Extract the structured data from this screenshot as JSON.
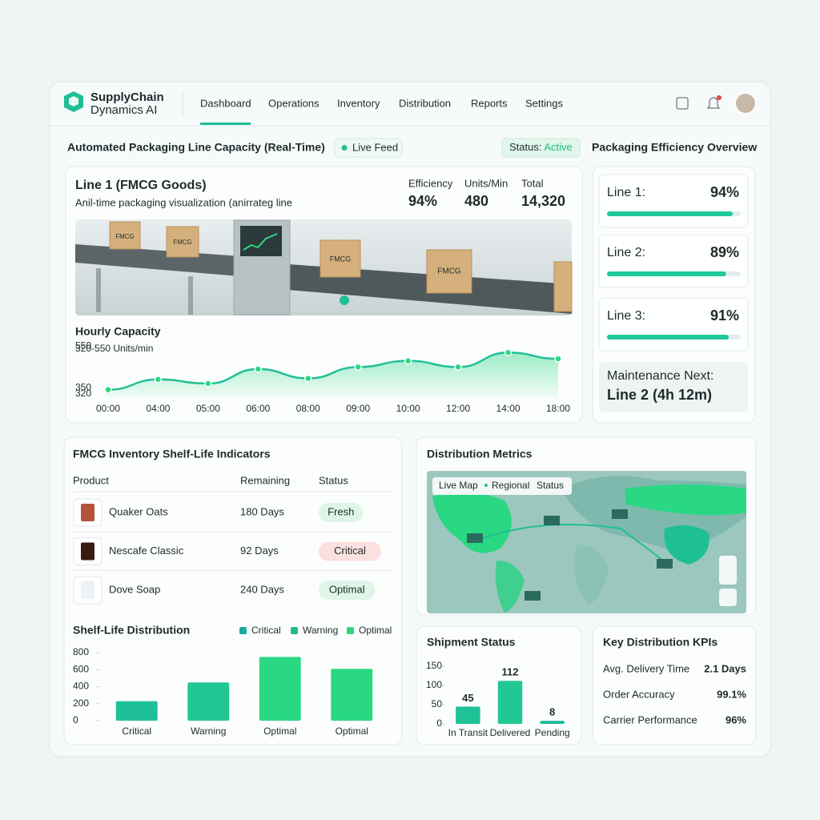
{
  "brand": {
    "name": "SupplyChain",
    "sub": "Dynamics AI"
  },
  "nav": [
    "Dashboard",
    "Operations",
    "Inventory",
    "Distribution",
    "Reports",
    "Settings"
  ],
  "packaging": {
    "title": "Automated Packaging Line Capacity (Real-Time)",
    "live": "Live Feed",
    "status_label": "Status:",
    "status": "Active",
    "line_name": "Line 1 (FMCG Goods)",
    "description": "Anil-time packaging visualization (anirrateg line",
    "stats": [
      {
        "label": "Efficiency",
        "value": "94%"
      },
      {
        "label": "Units/Min",
        "value": "480"
      },
      {
        "label": "Total",
        "value": "14,320"
      }
    ],
    "box_label": "FMCG"
  },
  "efficiency": {
    "title": "Packaging Efficiency Overview",
    "lines": [
      {
        "name": "Line 1:",
        "value": 94,
        "label": "94%"
      },
      {
        "name": "Line 2:",
        "value": 89,
        "label": "89%"
      },
      {
        "name": "Line 3:",
        "value": 91,
        "label": "91%"
      }
    ],
    "maintenance_label": "Maintenance Next:",
    "maintenance_value": "Line 2 (4h 12m)"
  },
  "inventory": {
    "title": "FMCG Inventory Shelf-Life Indicators",
    "headers": [
      "Product",
      "Remaining",
      "Status"
    ],
    "rows": [
      [
        "Quaker Oats",
        "180 Days",
        "Fresh"
      ],
      [
        "Nescafe Classic",
        "92 Days",
        "Critical"
      ],
      [
        "Dove Soap",
        "240 Days",
        "Optimal"
      ]
    ]
  },
  "distribution": {
    "title": "Distribution Metrics",
    "map_labels": [
      "Live Map",
      "Regional",
      "Status"
    ]
  },
  "kpis": {
    "title": "Key Distribution KPIs",
    "rows": [
      [
        "Avg. Delivery Time",
        "2.1 Days"
      ],
      [
        "Order Accuracy",
        "99.1%"
      ],
      [
        "Carrier Performance",
        "96%"
      ]
    ]
  },
  "chart_data": [
    {
      "type": "line",
      "title": "Hourly Capacity",
      "subtitle": "320-550 Units/min",
      "categories": [
        "00:00",
        "04:00",
        "05:00",
        "06:00",
        "08:00",
        "09:00",
        "10:00",
        "12:00",
        "14:00",
        "18:00"
      ],
      "values": [
        340,
        390,
        370,
        440,
        395,
        450,
        480,
        450,
        520,
        490
      ],
      "color": "#1fbf96",
      "ylim": [
        300,
        560
      ],
      "yticks": [
        320,
        350,
        550
      ]
    },
    {
      "type": "bar",
      "title": "Shelf-Life Distribution",
      "categories": [
        "Critical",
        "Warning",
        "Optimal",
        "Optimal"
      ],
      "values": [
        230,
        450,
        750,
        610
      ],
      "colors": [
        "#1fbf9a",
        "#22c693",
        "#2ad884",
        "#2ad884"
      ],
      "legend": [
        {
          "name": "Critical",
          "color": "#1aa99c"
        },
        {
          "name": "Warning",
          "color": "#20b98e"
        },
        {
          "name": "Optimal",
          "color": "#2fd67d"
        }
      ],
      "ylim": [
        0,
        800
      ],
      "yticks": [
        0,
        200,
        400,
        600,
        800
      ]
    },
    {
      "type": "bar",
      "title": "Shipment Status",
      "categories": [
        "In Transit",
        "Delivered",
        "Pending"
      ],
      "values": [
        45,
        112,
        8
      ],
      "colors": [
        "#1fc297",
        "#22c893",
        "#1fb9a0"
      ],
      "show_values": true,
      "ylim": [
        0,
        150
      ],
      "yticks": [
        0,
        50,
        100,
        150
      ]
    }
  ]
}
